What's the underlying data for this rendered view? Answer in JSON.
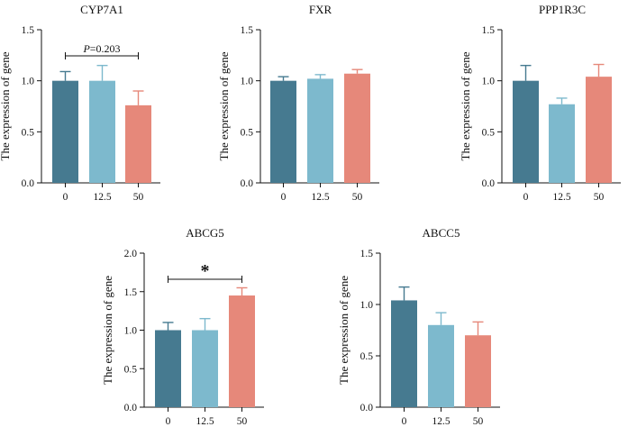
{
  "chart_data": [
    {
      "type": "bar",
      "title": "CYP7A1",
      "ylabel": "The expression of gene",
      "categories": [
        "0",
        "12.5",
        "50"
      ],
      "values": [
        1.0,
        1.0,
        0.76
      ],
      "errors": [
        0.09,
        0.15,
        0.14
      ],
      "ylim": [
        0,
        1.5
      ],
      "yticks": [
        0.0,
        0.5,
        1.0,
        1.5
      ],
      "ytick_labels": [
        "0.0",
        "0.5",
        "1.0",
        "1.5"
      ],
      "annotation": {
        "from": 0,
        "to": 2,
        "italic": "P",
        "rest": "=0.203"
      }
    },
    {
      "type": "bar",
      "title": "FXR",
      "ylabel": "The expression of gene",
      "categories": [
        "0",
        "12.5",
        "50"
      ],
      "values": [
        1.0,
        1.02,
        1.07
      ],
      "errors": [
        0.04,
        0.04,
        0.04
      ],
      "ylim": [
        0,
        1.5
      ],
      "yticks": [
        0.0,
        0.5,
        1.0,
        1.5
      ],
      "ytick_labels": [
        "0.0",
        "0.5",
        "1.0",
        "1.5"
      ]
    },
    {
      "type": "bar",
      "title": "PPP1R3C",
      "ylabel": "The expression of gene",
      "categories": [
        "0",
        "12.5",
        "50"
      ],
      "values": [
        1.0,
        0.77,
        1.04
      ],
      "errors": [
        0.15,
        0.06,
        0.12
      ],
      "ylim": [
        0,
        1.5
      ],
      "yticks": [
        0.0,
        0.5,
        1.0,
        1.5
      ],
      "ytick_labels": [
        "0.0",
        "0.5",
        "1.0",
        "1.5"
      ]
    },
    {
      "type": "bar",
      "title": "ABCG5",
      "ylabel": "The expression of gene",
      "categories": [
        "0",
        "12.5",
        "50"
      ],
      "values": [
        1.0,
        1.0,
        1.45
      ],
      "errors": [
        0.1,
        0.15,
        0.1
      ],
      "ylim": [
        0,
        2.0
      ],
      "yticks": [
        0.0,
        0.5,
        1.0,
        1.5,
        2.0
      ],
      "ytick_labels": [
        "0.0",
        "0.5",
        "1.0",
        "1.5",
        "2.0"
      ],
      "annotation": {
        "from": 0,
        "to": 2,
        "text": "*"
      }
    },
    {
      "type": "bar",
      "title": "ABCC5",
      "ylabel": "The expression of gene",
      "categories": [
        "0",
        "12.5",
        "50"
      ],
      "values": [
        1.04,
        0.8,
        0.7
      ],
      "errors": [
        0.13,
        0.12,
        0.13
      ],
      "ylim": [
        0,
        1.5
      ],
      "yticks": [
        0.0,
        0.5,
        1.0,
        1.5
      ],
      "ytick_labels": [
        "0.0",
        "0.5",
        "1.0",
        "1.5"
      ]
    }
  ],
  "colors": {
    "bars": [
      "#467a90",
      "#7db9cd",
      "#e6887a"
    ],
    "axis": "#111111"
  }
}
